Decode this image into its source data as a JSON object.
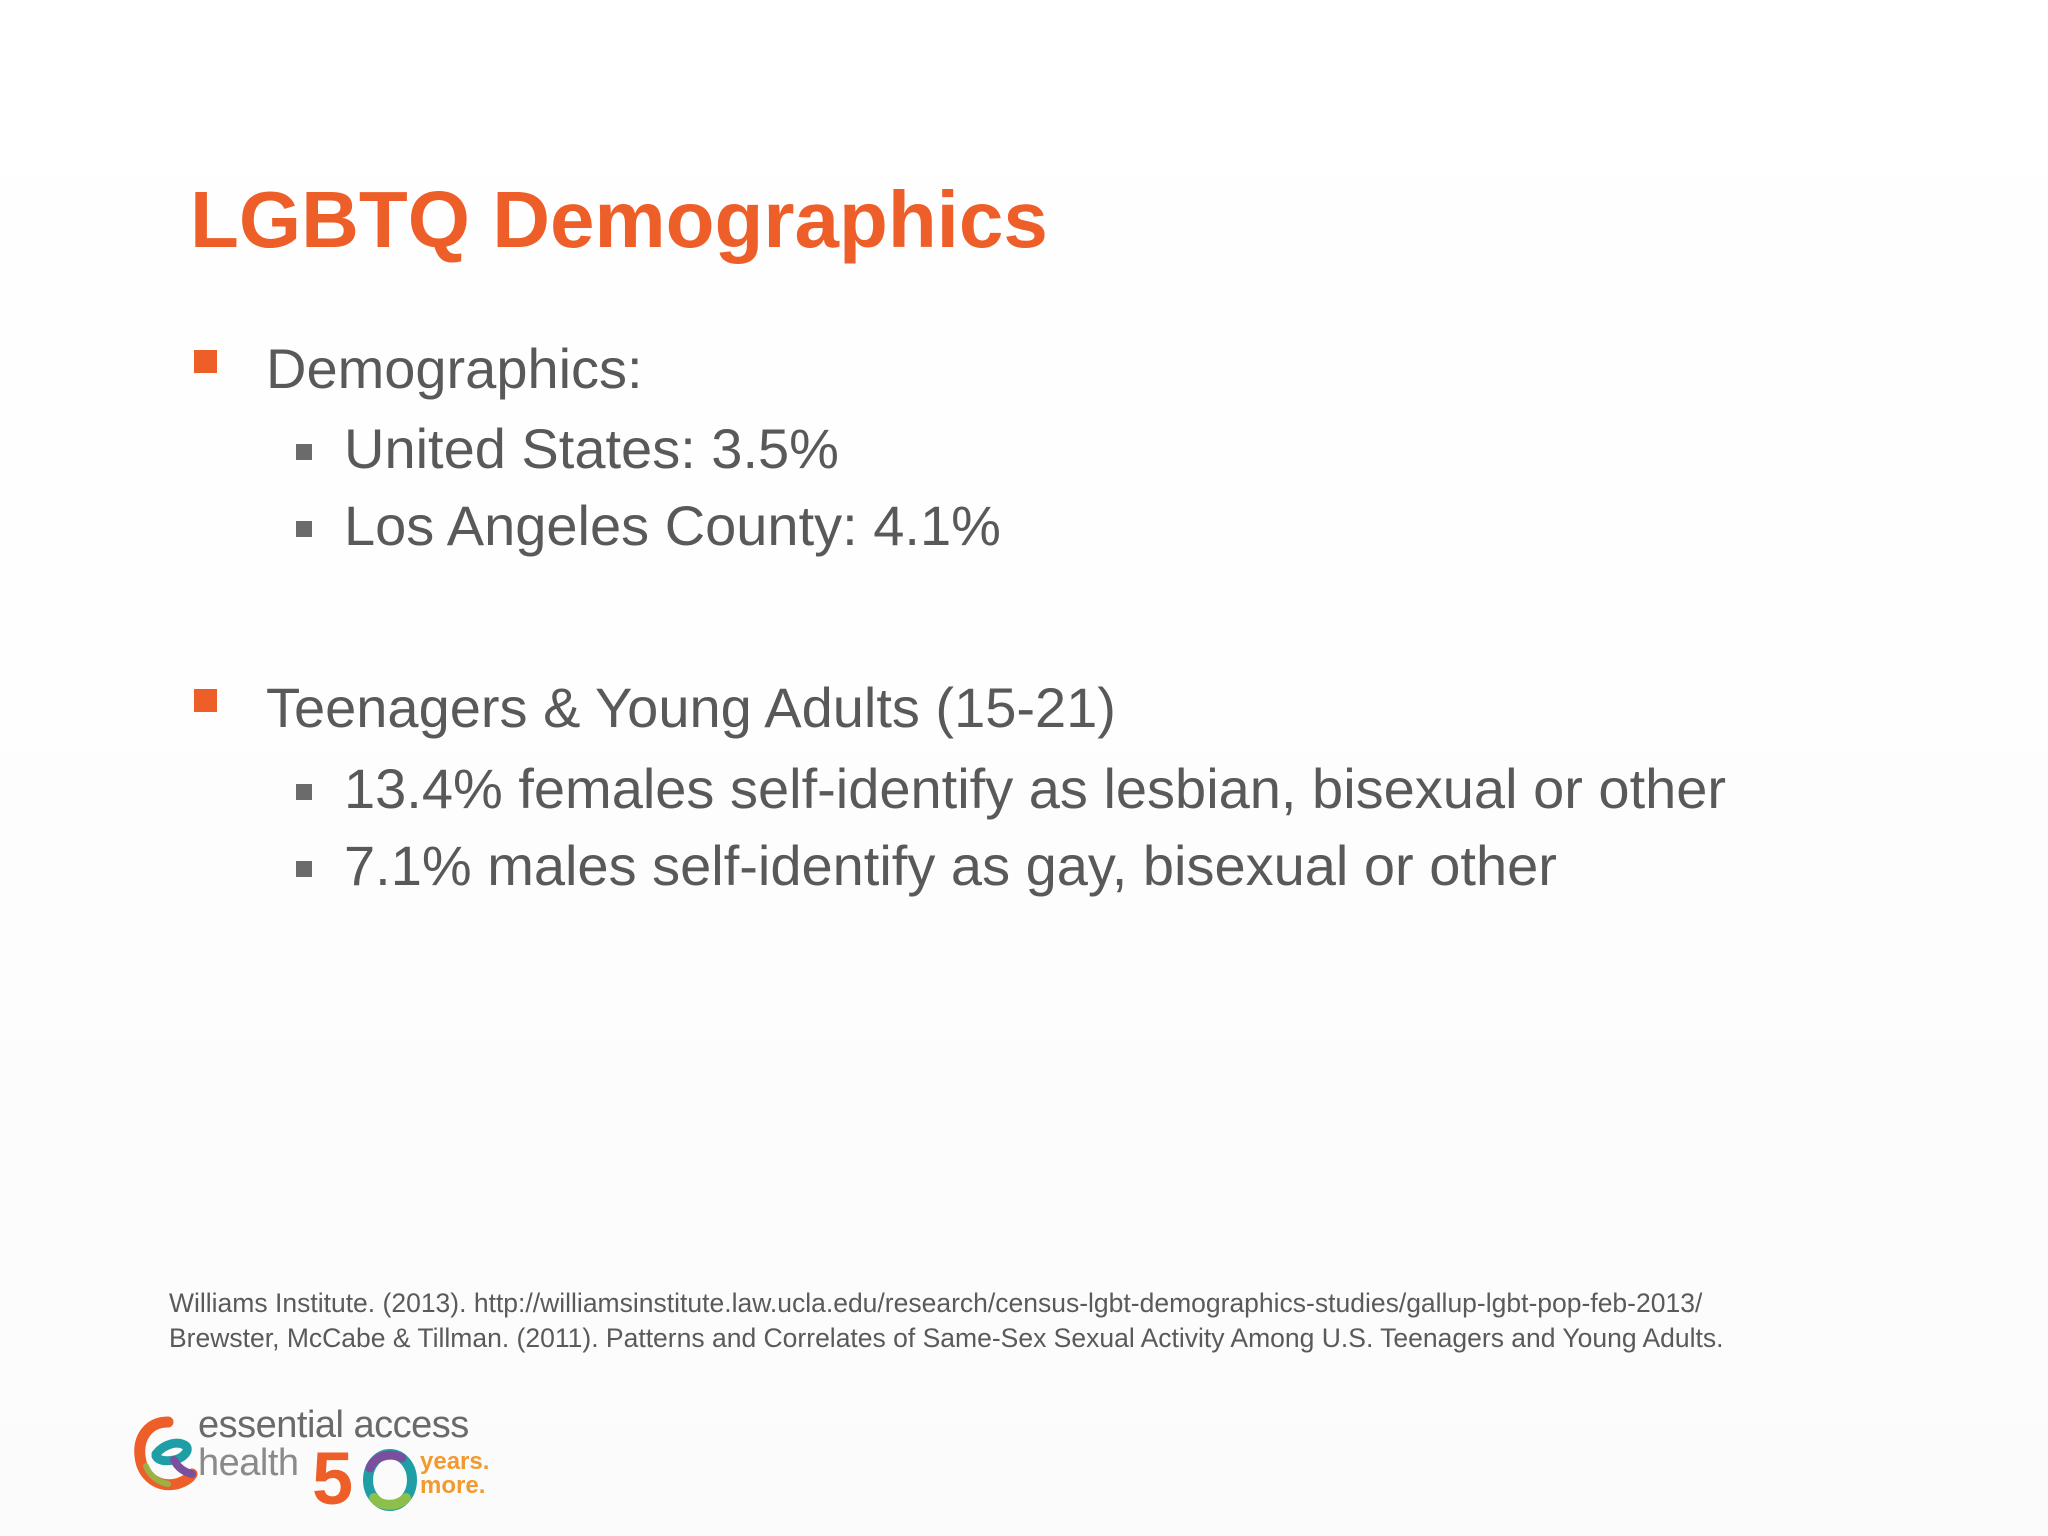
{
  "slide": {
    "title": "LGBTQ Demographics",
    "sections": [
      {
        "heading": "Demographics:",
        "items": [
          "United States: 3.5%",
          "Los Angeles County: 4.1%"
        ]
      },
      {
        "heading": "Teenagers & Young Adults (15-21)",
        "items": [
          "13.4% females self-identify as lesbian, bisexual or other",
          "7.1% males self-identify as gay, bisexual or other"
        ]
      }
    ],
    "references": [
      "Williams Institute. (2013). http://williamsinstitute.law.ucla.edu/research/census-lgbt-demographics-studies/gallup-lgbt-pop-feb-2013/",
      "Brewster, McCabe & Tillman. (2011). Patterns and Correlates of Same-Sex Sexual Activity Among U.S. Teenagers and Young Adults."
    ]
  },
  "logo": {
    "line1": "essential access",
    "line2": "health",
    "number": "50",
    "tag1": "years.",
    "tag2": "more."
  },
  "colors": {
    "accent": "#ee5e28",
    "body_text": "#595959",
    "sub_marker": "#6b6b6b",
    "logo_orange": "#f29a2e"
  },
  "icons": {
    "level1_bullet": "square-bullet-orange",
    "level2_bullet": "square-bullet-gray",
    "logo_mark": "essential-access-e-mark"
  }
}
